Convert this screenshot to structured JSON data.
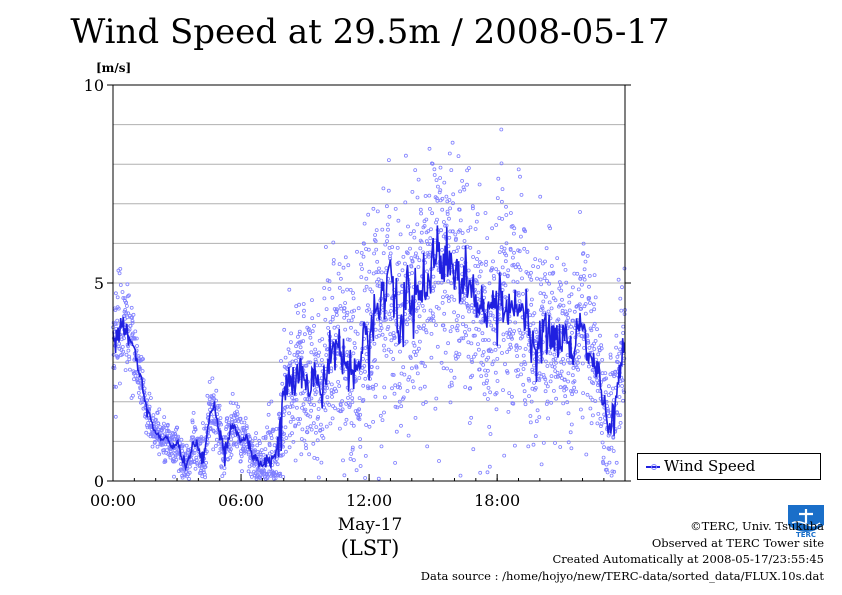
{
  "title": "Wind Speed at 29.5m / 2008-05-17",
  "chart_data": {
    "type": "scatter",
    "title": "Wind Speed at 29.5m / 2008-05-17",
    "ylabel": "[m/s]",
    "xlabel": "May-17",
    "xlabel2": "(LST)",
    "x_unit": "hours",
    "xlim": [
      0,
      23.99
    ],
    "ylim": [
      0,
      10
    ],
    "yticks": [
      {
        "value": 0,
        "label": "0"
      },
      {
        "value": 5,
        "label": "5"
      },
      {
        "value": 10,
        "label": "10"
      }
    ],
    "ygrid_step": 1,
    "xticks": [
      {
        "value": 0,
        "label": "00:00"
      },
      {
        "value": 6,
        "label": "06:00"
      },
      {
        "value": 12,
        "label": "12:00"
      },
      {
        "value": 18,
        "label": "18:00"
      }
    ],
    "xminor_step": 1,
    "grid": true,
    "legend_position": "right",
    "series": [
      {
        "name": "Wind Speed",
        "color": "#2020e0",
        "points_color": "#8080ff",
        "mean_x": [
          0,
          0.25,
          0.5,
          0.75,
          1,
          1.25,
          1.5,
          1.75,
          2,
          2.25,
          2.5,
          2.75,
          3,
          3.25,
          3.5,
          3.75,
          4,
          4.25,
          4.5,
          4.75,
          5,
          5.25,
          5.5,
          5.75,
          6,
          6.25,
          6.5,
          6.75,
          7,
          7.25,
          7.5,
          7.75,
          8,
          8.25,
          8.5,
          8.75,
          9,
          9.25,
          9.5,
          9.75,
          10,
          10.25,
          10.5,
          10.75,
          11,
          11.25,
          11.5,
          11.75,
          12,
          12.25,
          12.5,
          12.75,
          13,
          13.25,
          13.5,
          13.75,
          14,
          14.25,
          14.5,
          14.75,
          15,
          15.25,
          15.5,
          15.75,
          16,
          16.25,
          16.5,
          16.75,
          17,
          17.25,
          17.5,
          17.75,
          18,
          18.25,
          18.5,
          18.75,
          19,
          19.25,
          19.5,
          19.75,
          20,
          20.25,
          20.5,
          20.75,
          21,
          21.25,
          21.5,
          21.75,
          22,
          22.25,
          22.5,
          22.75,
          23,
          23.25,
          23.5,
          23.75
        ],
        "mean_y": [
          3.5,
          3.8,
          3.9,
          3.6,
          3.3,
          2.7,
          2.0,
          1.5,
          1.2,
          1.1,
          1.05,
          0.9,
          1.0,
          0.5,
          0.4,
          1.0,
          0.8,
          0.5,
          1.6,
          1.9,
          1.2,
          0.6,
          1.3,
          1.4,
          1.0,
          1.1,
          0.7,
          0.5,
          0.4,
          0.6,
          0.6,
          1.0,
          2.2,
          2.6,
          2.4,
          2.9,
          2.5,
          2.3,
          2.8,
          2.0,
          3.0,
          3.1,
          3.5,
          2.9,
          3.2,
          3.0,
          2.7,
          3.7,
          3.5,
          4.2,
          4.6,
          4.8,
          5.1,
          4.2,
          3.6,
          4.9,
          4.3,
          4.8,
          4.9,
          5.2,
          5.5,
          5.6,
          5.4,
          5.7,
          5.3,
          5.1,
          5.3,
          4.8,
          4.6,
          4.2,
          4.0,
          4.1,
          4.3,
          4.6,
          4.2,
          4.5,
          4.4,
          4.2,
          3.8,
          3.0,
          3.2,
          4.0,
          3.7,
          3.5,
          3.6,
          3.9,
          3.2,
          3.8,
          4.0,
          3.3,
          3.1,
          2.8,
          1.8,
          1.2,
          1.8,
          2.8,
          3.6,
          3.5
        ],
        "spread_y": [
          0.6,
          0.6,
          0.6,
          0.6,
          0.5,
          0.4,
          0.3,
          0.3,
          0.25,
          0.25,
          0.25,
          0.25,
          0.3,
          0.3,
          0.3,
          0.35,
          0.35,
          0.35,
          0.4,
          0.4,
          0.4,
          0.35,
          0.35,
          0.35,
          0.35,
          0.35,
          0.35,
          0.35,
          0.4,
          0.5,
          0.7,
          0.8,
          0.9,
          0.9,
          0.9,
          1.0,
          1.0,
          1.0,
          1.0,
          1.0,
          1.1,
          1.1,
          1.1,
          1.2,
          1.2,
          1.2,
          1.2,
          1.3,
          1.3,
          1.4,
          1.4,
          1.4,
          1.5,
          1.5,
          1.5,
          1.5,
          1.5,
          1.5,
          1.5,
          1.5,
          1.5,
          1.5,
          1.5,
          1.5,
          1.5,
          1.5,
          1.4,
          1.4,
          1.4,
          1.4,
          1.4,
          1.4,
          1.4,
          1.4,
          1.4,
          1.4,
          1.3,
          1.3,
          1.3,
          1.3,
          1.3,
          1.3,
          1.2,
          1.2,
          1.2,
          1.2,
          1.2,
          1.2,
          1.1,
          1.0,
          1.0,
          0.9,
          0.8,
          0.7,
          0.8,
          0.9,
          0.8,
          0.8
        ]
      }
    ]
  },
  "legend": {
    "label": "Wind Speed"
  },
  "axis": {
    "y_unit": "[m/s]",
    "date": "May-17",
    "timezone": "(LST)"
  },
  "footer": {
    "copyright": "©TERC, Univ. Tsukuba",
    "observed": "Observed at TERC Tower site",
    "created": "Created Automatically at 2008-05-17/23:55:45",
    "source": "Data source : /home/hojyo/new/TERC-data/sorted_data/FLUX.10s.dat"
  },
  "logo": {
    "name": "terc-logo",
    "text": "TERC",
    "color": "#1a6fc9"
  }
}
